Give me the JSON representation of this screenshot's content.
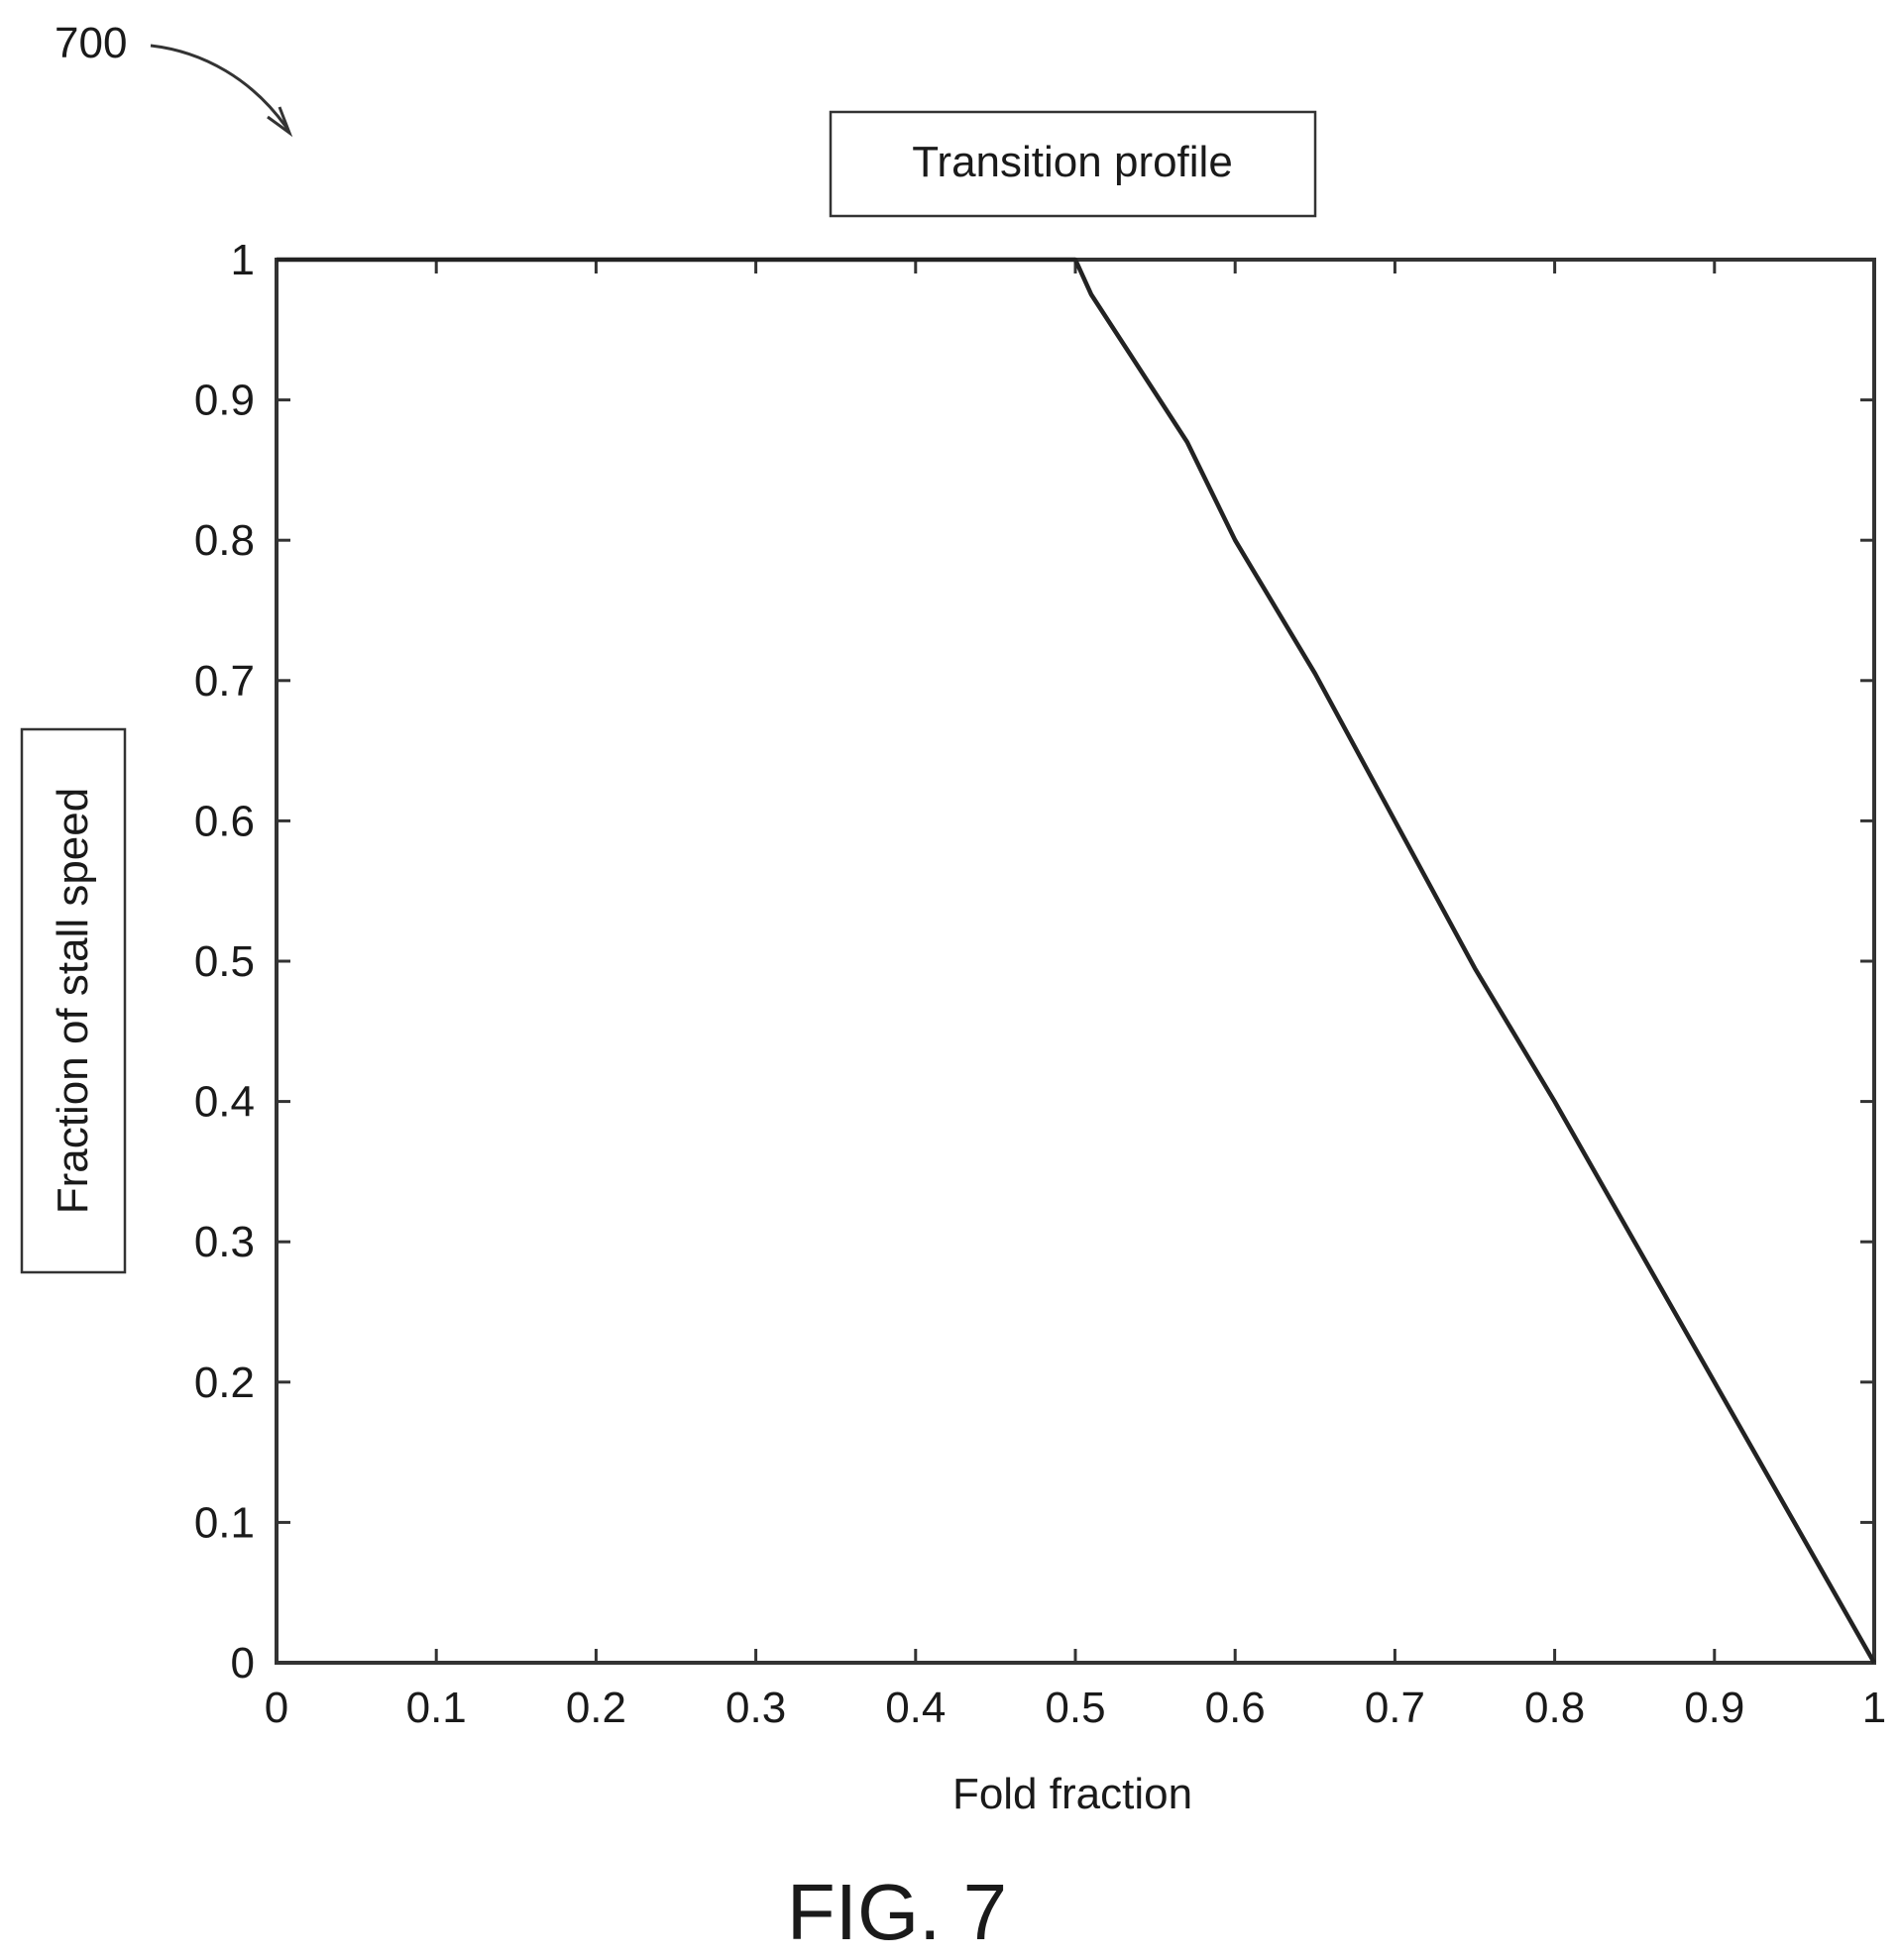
{
  "figure": {
    "reference_numeral": "700",
    "caption": "FIG. 7"
  },
  "chart_data": {
    "type": "line",
    "title": "Transition profile",
    "xlabel": "Fold fraction",
    "ylabel": "Fraction of stall speed",
    "xlim": [
      0,
      1
    ],
    "ylim": [
      0,
      1
    ],
    "xticks": [
      "0",
      "0.1",
      "0.2",
      "0.3",
      "0.4",
      "0.5",
      "0.6",
      "0.7",
      "0.8",
      "0.9",
      "1"
    ],
    "yticks": [
      "0",
      "0.1",
      "0.2",
      "0.3",
      "0.4",
      "0.5",
      "0.6",
      "0.7",
      "0.8",
      "0.9",
      "1"
    ],
    "grid": false,
    "series": [
      {
        "x": [
          0,
          0.5,
          0.51,
          0.53,
          0.55,
          0.57,
          0.6,
          0.65,
          0.7,
          0.75,
          0.8,
          0.85,
          0.9,
          0.95,
          1.0
        ],
        "y": [
          1,
          1,
          0.975,
          0.94,
          0.905,
          0.87,
          0.8,
          0.705,
          0.6,
          0.495,
          0.4,
          0.3,
          0.2,
          0.1,
          0
        ]
      }
    ]
  }
}
